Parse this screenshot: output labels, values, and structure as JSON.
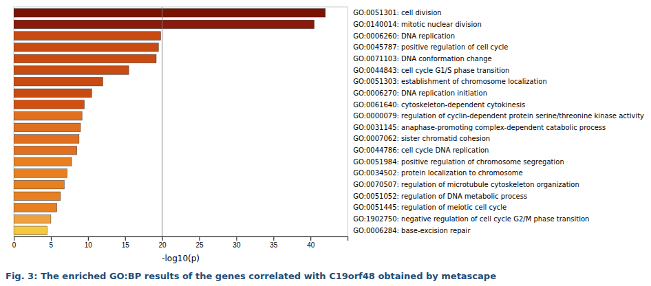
{
  "chart_data": {
    "type": "bar",
    "orientation": "horizontal",
    "caption": "Fig. 3: The enriched GO:BP results of the genes correlated with C19orf48 obtained by metascape",
    "xlabel": "-log10(p)",
    "categories": [
      "GO:0051301: cell division",
      "GO:0140014: mitotic nuclear division",
      "GO:0006260: DNA replication",
      "GO:0045787: positive regulation of cell cycle",
      "GO:0071103: DNA conformation change",
      "GO:0044843: cell cycle G1/S phase transition",
      "GO:0051303: establishment of chromosome localization",
      "GO:0006270: DNA replication initiation",
      "GO:0061640: cytoskeleton-dependent cytokinesis",
      "GO:0000079: regulation of cyclin-dependent protein serine/threonine kinase activity",
      "GO:0031145: anaphase-promoting complex-dependent catabolic process",
      "GO:0007062: sister chromatid cohesion",
      "GO:0044786: cell cycle DNA replication",
      "GO:0051984: positive regulation of chromosome segregation",
      "GO:0034502: protein localization to chromosome",
      "GO:0070507: regulation of microtubule cytoskeleton organization",
      "GO:0051052: regulation of DNA metabolic process",
      "GO:0051445: regulation of meiotic cell cycle",
      "GO:1902750: negative regulation of cell cycle G2/M phase transition",
      "GO:0006284: base-excision repair"
    ],
    "values": [
      42.0,
      40.5,
      19.8,
      19.5,
      19.2,
      15.5,
      12.0,
      10.5,
      9.5,
      9.2,
      9.0,
      8.8,
      8.5,
      7.8,
      7.2,
      6.8,
      6.3,
      5.8,
      5.0,
      4.5
    ],
    "colors": [
      "#7B1200",
      "#8B1A0A",
      "#C84B11",
      "#C84B11",
      "#C84B11",
      "#C84B11",
      "#C84B11",
      "#C84B11",
      "#D05010",
      "#E07020",
      "#E07020",
      "#E07020",
      "#E07020",
      "#E88020",
      "#E88020",
      "#E88020",
      "#E88020",
      "#E88020",
      "#F0A040",
      "#F5C840"
    ],
    "xlim": [
      0,
      45
    ],
    "xticks": [
      0,
      5,
      10,
      15,
      20,
      25,
      30,
      35,
      40
    ],
    "vline": 20,
    "grid": false
  }
}
